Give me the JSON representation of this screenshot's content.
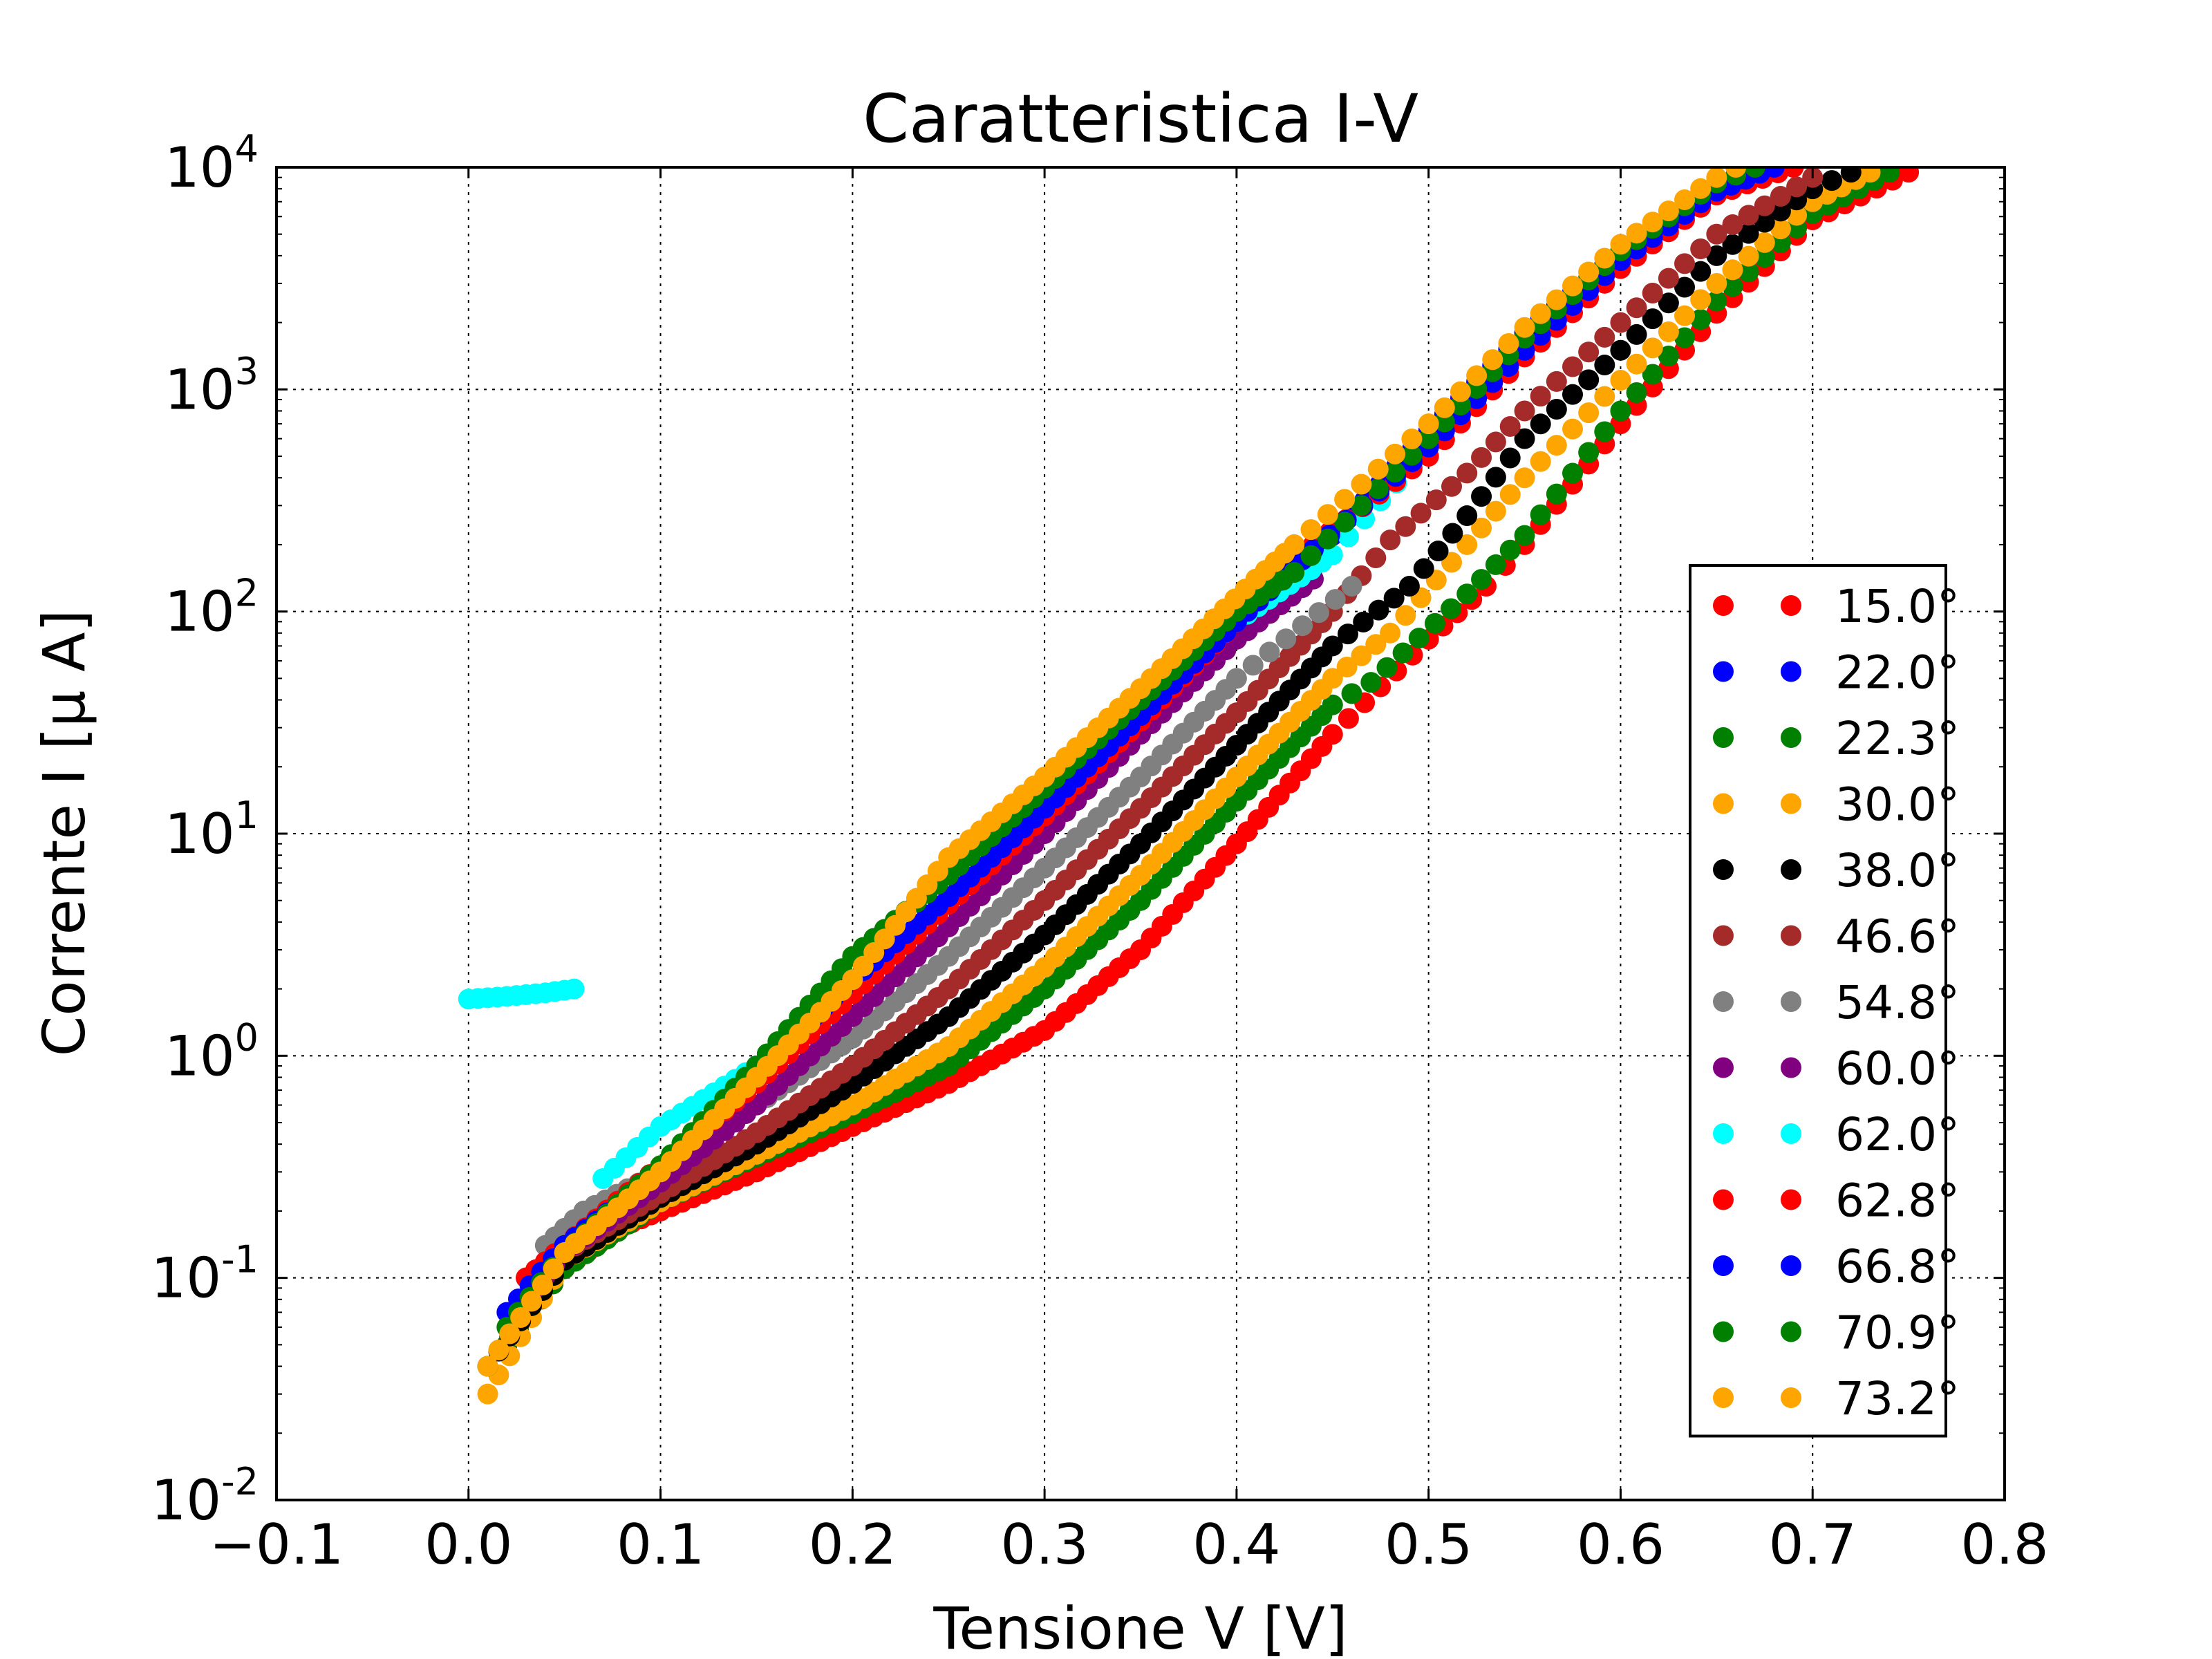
{
  "chart_data": {
    "type": "scatter",
    "title": "Caratteristica I-V",
    "xlabel": "Tensione V [V]",
    "ylabel": "Corrente I [μ A]",
    "xscale": "linear",
    "yscale": "log",
    "xlim": [
      -0.1,
      0.8
    ],
    "ylim": [
      0.01,
      10000
    ],
    "grid": true,
    "legend_position": "lower right",
    "x_ticks": [
      {
        "value": -0.1,
        "label": "−0.1"
      },
      {
        "value": 0.0,
        "label": "0.0"
      },
      {
        "value": 0.1,
        "label": "0.1"
      },
      {
        "value": 0.2,
        "label": "0.2"
      },
      {
        "value": 0.3,
        "label": "0.3"
      },
      {
        "value": 0.4,
        "label": "0.4"
      },
      {
        "value": 0.5,
        "label": "0.5"
      },
      {
        "value": 0.6,
        "label": "0.6"
      },
      {
        "value": 0.7,
        "label": "0.7"
      },
      {
        "value": 0.8,
        "label": "0.8"
      }
    ],
    "y_ticks": [
      {
        "value": 0.01,
        "base": "10",
        "exp": "-2"
      },
      {
        "value": 0.1,
        "base": "10",
        "exp": "-1"
      },
      {
        "value": 1,
        "base": "10",
        "exp": "0"
      },
      {
        "value": 10,
        "base": "10",
        "exp": "1"
      },
      {
        "value": 100,
        "base": "10",
        "exp": "2"
      },
      {
        "value": 1000,
        "base": "10",
        "exp": "3"
      },
      {
        "value": 10000,
        "base": "10",
        "exp": "4"
      }
    ],
    "series": [
      {
        "name": "15.0°",
        "color": "#ff0000",
        "points": [
          [
            0.02,
            0.05
          ],
          [
            0.05,
            0.11
          ],
          [
            0.08,
            0.17
          ],
          [
            0.1,
            0.2
          ],
          [
            0.15,
            0.3
          ],
          [
            0.2,
            0.48
          ],
          [
            0.25,
            0.75
          ],
          [
            0.3,
            1.3
          ],
          [
            0.35,
            3.0
          ],
          [
            0.4,
            9.0
          ],
          [
            0.45,
            28
          ],
          [
            0.5,
            75
          ],
          [
            0.53,
            130
          ],
          [
            0.55,
            200
          ],
          [
            0.6,
            700
          ],
          [
            0.65,
            2200
          ],
          [
            0.7,
            5800
          ],
          [
            0.75,
            9500
          ]
        ]
      },
      {
        "name": "22.0°",
        "color": "#0000ff",
        "points": [
          [
            0.02,
            0.05
          ],
          [
            0.05,
            0.13
          ],
          [
            0.1,
            0.3
          ],
          [
            0.15,
            0.8
          ],
          [
            0.2,
            2.2
          ],
          [
            0.25,
            5
          ],
          [
            0.3,
            12
          ],
          [
            0.35,
            30
          ],
          [
            0.4,
            80
          ],
          [
            0.425,
            140
          ],
          [
            0.45,
            220
          ],
          [
            0.5,
            650
          ],
          [
            0.55,
            1800
          ],
          [
            0.6,
            4200
          ],
          [
            0.65,
            8000
          ],
          [
            0.68,
            10000
          ]
        ]
      },
      {
        "name": "22.3°",
        "color": "#008000",
        "points": [
          [
            0.02,
            0.05
          ],
          [
            0.05,
            0.11
          ],
          [
            0.1,
            0.22
          ],
          [
            0.15,
            0.35
          ],
          [
            0.2,
            0.55
          ],
          [
            0.25,
            0.9
          ],
          [
            0.3,
            2.0
          ],
          [
            0.35,
            5.0
          ],
          [
            0.4,
            14
          ],
          [
            0.45,
            38
          ],
          [
            0.47,
            48
          ],
          [
            0.52,
            120
          ],
          [
            0.55,
            220
          ],
          [
            0.6,
            800
          ],
          [
            0.65,
            2500
          ],
          [
            0.7,
            6200
          ],
          [
            0.74,
            9500
          ]
        ]
      },
      {
        "name": "30.0°",
        "color": "#ffa500",
        "points": [
          [
            0.01,
            0.03
          ],
          [
            0.05,
            0.12
          ],
          [
            0.1,
            0.22
          ],
          [
            0.15,
            0.36
          ],
          [
            0.2,
            0.6
          ],
          [
            0.25,
            1.1
          ],
          [
            0.3,
            2.5
          ],
          [
            0.35,
            6.5
          ],
          [
            0.4,
            18
          ],
          [
            0.45,
            50
          ],
          [
            0.48,
            80
          ],
          [
            0.52,
            200
          ],
          [
            0.55,
            400
          ],
          [
            0.6,
            1100
          ],
          [
            0.65,
            3000
          ],
          [
            0.7,
            7000
          ],
          [
            0.73,
            9500
          ]
        ]
      },
      {
        "name": "38.0°",
        "color": "#000000",
        "points": [
          [
            0.01,
            0.04
          ],
          [
            0.05,
            0.12
          ],
          [
            0.1,
            0.23
          ],
          [
            0.15,
            0.4
          ],
          [
            0.2,
            0.75
          ],
          [
            0.25,
            1.5
          ],
          [
            0.3,
            3.5
          ],
          [
            0.35,
            9.0
          ],
          [
            0.4,
            25
          ],
          [
            0.45,
            70
          ],
          [
            0.49,
            130
          ],
          [
            0.52,
            270
          ],
          [
            0.55,
            600
          ],
          [
            0.6,
            1500
          ],
          [
            0.65,
            4000
          ],
          [
            0.7,
            8000
          ],
          [
            0.72,
            9500
          ]
        ]
      },
      {
        "name": "46.6°",
        "color": "#a52a2a",
        "points": [
          [
            0.03,
            0.1
          ],
          [
            0.05,
            0.13
          ],
          [
            0.1,
            0.24
          ],
          [
            0.15,
            0.45
          ],
          [
            0.2,
            0.9
          ],
          [
            0.25,
            2.0
          ],
          [
            0.3,
            5.0
          ],
          [
            0.35,
            13
          ],
          [
            0.4,
            35
          ],
          [
            0.45,
            100
          ],
          [
            0.48,
            210
          ],
          [
            0.52,
            420
          ],
          [
            0.55,
            800
          ],
          [
            0.6,
            2000
          ],
          [
            0.65,
            5000
          ],
          [
            0.7,
            9000
          ]
        ]
      },
      {
        "name": "54.8°",
        "color": "#808080",
        "points": [
          [
            0.04,
            0.14
          ],
          [
            0.06,
            0.2
          ],
          [
            0.1,
            0.3
          ],
          [
            0.15,
            0.6
          ],
          [
            0.2,
            1.2
          ],
          [
            0.25,
            2.8
          ],
          [
            0.3,
            7.0
          ],
          [
            0.35,
            18
          ],
          [
            0.4,
            50
          ],
          [
            0.46,
            130
          ]
        ]
      },
      {
        "name": "60.0°",
        "color": "#800080",
        "points": [
          [
            0.03,
            0.08
          ],
          [
            0.05,
            0.13
          ],
          [
            0.1,
            0.27
          ],
          [
            0.15,
            0.6
          ],
          [
            0.2,
            1.5
          ],
          [
            0.25,
            3.8
          ],
          [
            0.3,
            10
          ],
          [
            0.35,
            28
          ],
          [
            0.4,
            75
          ],
          [
            0.44,
            140
          ]
        ]
      },
      {
        "name": "62.0°",
        "color": "#00ffff",
        "points": [
          [
            0.0,
            1.8
          ],
          [
            0.02,
            1.85
          ],
          [
            0.04,
            1.92
          ],
          [
            0.055,
            2.0
          ],
          [
            0.07,
            0.28
          ],
          [
            0.1,
            0.48
          ],
          [
            0.15,
            0.9
          ],
          [
            0.2,
            2.0
          ],
          [
            0.25,
            5.0
          ],
          [
            0.3,
            13
          ],
          [
            0.35,
            35
          ],
          [
            0.4,
            90
          ],
          [
            0.45,
            180
          ],
          [
            0.5,
            550
          ],
          [
            0.55,
            1600
          ],
          [
            0.6,
            4000
          ],
          [
            0.65,
            7800
          ],
          [
            0.69,
            10000
          ]
        ]
      },
      {
        "name": "62.8°",
        "color": "#ff0000",
        "points": [
          [
            0.03,
            0.1
          ],
          [
            0.05,
            0.14
          ],
          [
            0.1,
            0.32
          ],
          [
            0.15,
            0.75
          ],
          [
            0.2,
            1.9
          ],
          [
            0.25,
            4.8
          ],
          [
            0.3,
            12
          ],
          [
            0.35,
            32
          ],
          [
            0.4,
            90
          ],
          [
            0.44,
            200
          ],
          [
            0.5,
            500
          ],
          [
            0.55,
            1400
          ],
          [
            0.6,
            3500
          ],
          [
            0.65,
            7500
          ],
          [
            0.69,
            10000
          ]
        ]
      },
      {
        "name": "66.8°",
        "color": "#0000ff",
        "points": [
          [
            0.02,
            0.07
          ],
          [
            0.05,
            0.14
          ],
          [
            0.1,
            0.3
          ],
          [
            0.15,
            0.9
          ],
          [
            0.18,
            1.5
          ],
          [
            0.2,
            2.2
          ],
          [
            0.25,
            5.2
          ],
          [
            0.3,
            13
          ],
          [
            0.35,
            34
          ],
          [
            0.4,
            90
          ],
          [
            0.44,
            190
          ],
          [
            0.5,
            550
          ],
          [
            0.55,
            1500
          ],
          [
            0.6,
            3800
          ],
          [
            0.65,
            7800
          ],
          [
            0.68,
            10000
          ]
        ]
      },
      {
        "name": "70.9°",
        "color": "#008000",
        "points": [
          [
            0.02,
            0.06
          ],
          [
            0.05,
            0.13
          ],
          [
            0.1,
            0.32
          ],
          [
            0.15,
            0.9
          ],
          [
            0.2,
            2.8
          ],
          [
            0.25,
            6.5
          ],
          [
            0.3,
            16
          ],
          [
            0.35,
            40
          ],
          [
            0.4,
            100
          ],
          [
            0.43,
            150
          ],
          [
            0.5,
            600
          ],
          [
            0.55,
            1700
          ],
          [
            0.6,
            4200
          ],
          [
            0.65,
            8500
          ],
          [
            0.67,
            10000
          ]
        ]
      },
      {
        "name": "73.2°",
        "color": "#ffa500",
        "points": [
          [
            0.01,
            0.04
          ],
          [
            0.05,
            0.13
          ],
          [
            0.1,
            0.3
          ],
          [
            0.15,
            0.8
          ],
          [
            0.2,
            2.2
          ],
          [
            0.25,
            7.8
          ],
          [
            0.3,
            18
          ],
          [
            0.35,
            45
          ],
          [
            0.41,
            140
          ],
          [
            0.43,
            200
          ],
          [
            0.5,
            700
          ],
          [
            0.55,
            1900
          ],
          [
            0.6,
            4500
          ],
          [
            0.65,
            9000
          ],
          [
            0.66,
            10000
          ]
        ]
      }
    ]
  }
}
